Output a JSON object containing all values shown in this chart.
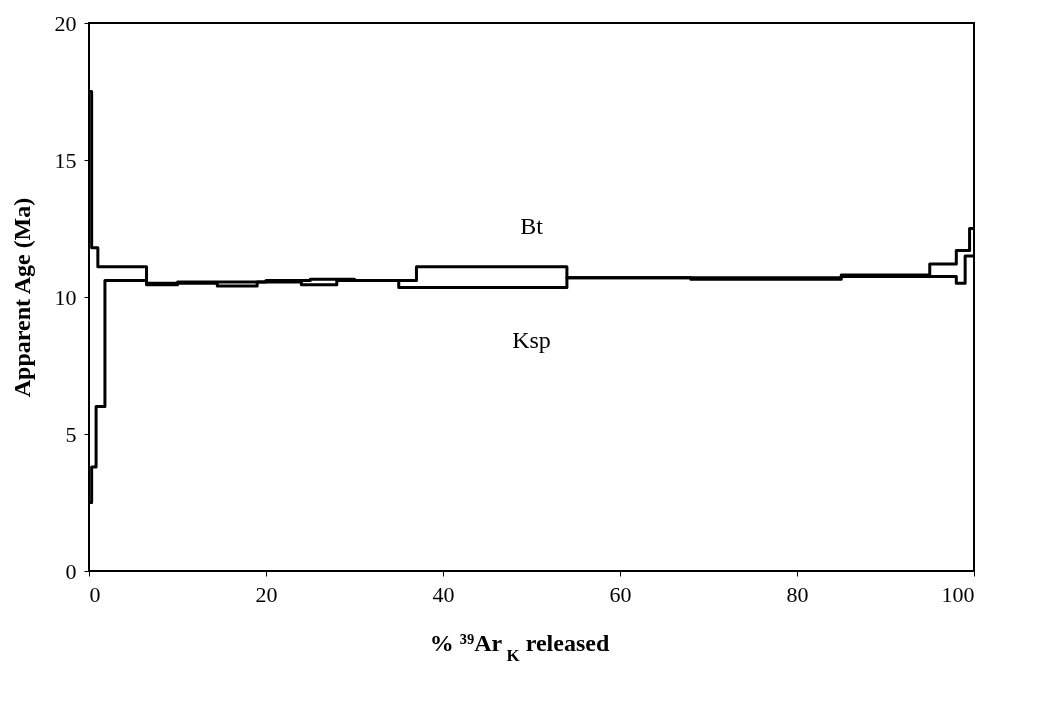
{
  "chart_data": {
    "type": "step",
    "xlabel": "% ³⁹Ar$_{K}$ released",
    "ylabel": "Apparent Age (Ma)",
    "xlim": [
      0,
      100
    ],
    "xticks": [
      0,
      20,
      40,
      60,
      80,
      100
    ],
    "ylim": [
      0,
      20
    ],
    "yticks": [
      0,
      5,
      10,
      15,
      20
    ],
    "grid": false,
    "legend": false,
    "line_style": "solid",
    "marker": "none",
    "series": [
      {
        "name": "Bt",
        "color": "#000000",
        "x": [
          0,
          0.3,
          1,
          6.5,
          10,
          15,
          20,
          25,
          30,
          37,
          54,
          68,
          85,
          95,
          98,
          99.5,
          100
        ],
        "values": [
          17.5,
          11.8,
          11.1,
          10.5,
          10.55,
          10.55,
          10.6,
          10.65,
          10.6,
          11.1,
          10.7,
          10.7,
          10.8,
          11.2,
          11.7,
          12.5,
          12.5
        ]
      },
      {
        "name": "Ksp",
        "color": "#000000",
        "x": [
          0,
          0.3,
          0.8,
          1.8,
          6.5,
          10,
          14.5,
          19,
          24,
          28,
          35,
          37,
          54,
          68,
          85,
          98,
          99,
          100
        ],
        "values": [
          2.5,
          3.8,
          6.0,
          10.6,
          10.45,
          10.5,
          10.4,
          10.55,
          10.45,
          10.6,
          10.35,
          10.35,
          10.7,
          10.65,
          10.75,
          10.5,
          11.5,
          11.5
        ]
      }
    ]
  }
}
